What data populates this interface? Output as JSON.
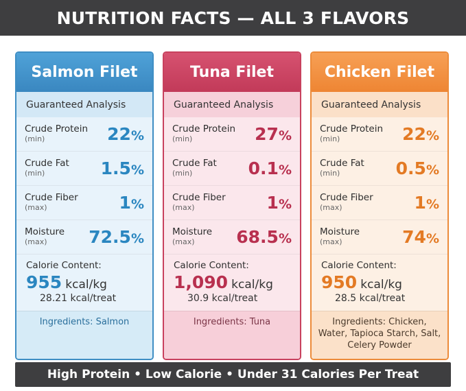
{
  "header": {
    "title": "NUTRITION FACTS — ALL 3 FLAVORS"
  },
  "colors": {
    "salmon": "#3f8ec4",
    "tuna": "#c8415e",
    "chicken": "#ec8b3a",
    "banner": "#3e3e40"
  },
  "cards": [
    {
      "title": "Salmon Filet",
      "section": "Guaranteed Analysis",
      "rows": [
        {
          "name": "Crude Protein",
          "qualifier": "(min)",
          "value": "22",
          "unit": "%"
        },
        {
          "name": "Crude Fat",
          "qualifier": "(min)",
          "value": "1.5",
          "unit": "%"
        },
        {
          "name": "Crude Fiber",
          "qualifier": "(max)",
          "value": "1",
          "unit": "%"
        },
        {
          "name": "Moisture",
          "qualifier": "(max)",
          "value": "72.5",
          "unit": "%"
        }
      ],
      "calorie_label": "Calorie Content:",
      "kcal_value": "955",
      "kcal_unit": "kcal/kg",
      "kcal_treat": "28.21 kcal/treat",
      "ingredients": "Ingredients: Salmon"
    },
    {
      "title": "Tuna Filet",
      "section": "Guaranteed Analysis",
      "rows": [
        {
          "name": "Crude Protein",
          "qualifier": "(min)",
          "value": "27",
          "unit": "%"
        },
        {
          "name": "Crude Fat",
          "qualifier": "(min)",
          "value": "0.1",
          "unit": "%"
        },
        {
          "name": "Crude Fiber",
          "qualifier": "(max)",
          "value": "1",
          "unit": "%"
        },
        {
          "name": "Moisture",
          "qualifier": "(max)",
          "value": "68.5",
          "unit": "%"
        }
      ],
      "calorie_label": "Calorie Content:",
      "kcal_value": "1,090",
      "kcal_unit": "kcal/kg",
      "kcal_treat": "30.9 kcal/treat",
      "ingredients": "Ingredients: Tuna"
    },
    {
      "title": "Chicken Filet",
      "section": "Guaranteed Analysis",
      "rows": [
        {
          "name": "Crude Protein",
          "qualifier": "(min)",
          "value": "22",
          "unit": "%"
        },
        {
          "name": "Crude Fat",
          "qualifier": "(min)",
          "value": "0.5",
          "unit": "%"
        },
        {
          "name": "Crude Fiber",
          "qualifier": "(max)",
          "value": "1",
          "unit": "%"
        },
        {
          "name": "Moisture",
          "qualifier": "(max)",
          "value": "74",
          "unit": "%"
        }
      ],
      "calorie_label": "Calorie Content:",
      "kcal_value": "950",
      "kcal_unit": "kcal/kg",
      "kcal_treat": "28.5 kcal/treat",
      "ingredients": "Ingredients: Chicken, Water, Tapioca Starch, Salt, Celery Powder"
    }
  ],
  "footer": {
    "text": "High Protein • Low Calorie • Under 31 Calories Per Treat"
  }
}
